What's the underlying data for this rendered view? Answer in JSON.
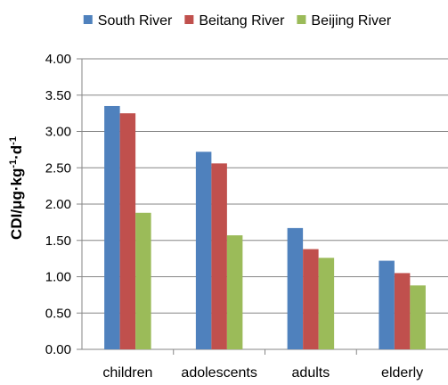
{
  "chart_data": {
    "type": "bar",
    "title": "",
    "xlabel": "",
    "ylabel": {
      "base": "CDI/μg·kg",
      "sup1": "-1",
      "mid": "·d",
      "sup2": "-1"
    },
    "categories": [
      "children",
      "adolescents",
      "adults",
      "elderly"
    ],
    "series": [
      {
        "name": "South River",
        "color": "#4F81BD",
        "values": [
          3.35,
          2.72,
          1.67,
          1.22
        ]
      },
      {
        "name": "Beitang River",
        "color": "#C0504D",
        "values": [
          3.25,
          2.56,
          1.38,
          1.05
        ]
      },
      {
        "name": "Beijing River",
        "color": "#9BBB59",
        "values": [
          1.88,
          1.57,
          1.26,
          0.88
        ]
      }
    ],
    "ylim": [
      0,
      4
    ],
    "yticks": [
      "0.00",
      "0.50",
      "1.00",
      "1.50",
      "2.00",
      "2.50",
      "3.00",
      "3.50",
      "4.00"
    ],
    "ytick_values": [
      0,
      0.5,
      1,
      1.5,
      2,
      2.5,
      3,
      3.5,
      4
    ],
    "grid": true,
    "legend_position": "top"
  }
}
